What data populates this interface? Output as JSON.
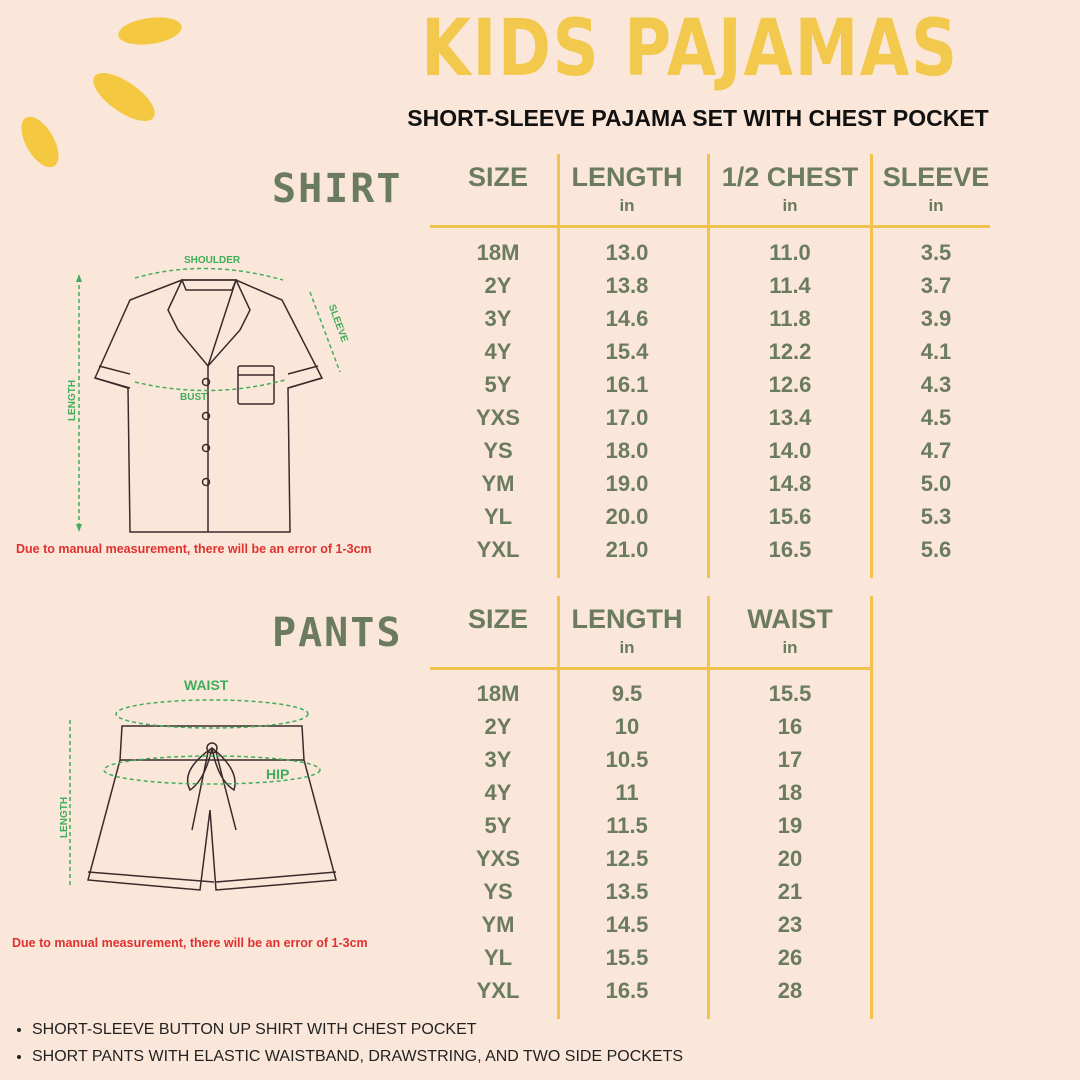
{
  "title": "KIDS PAJAMAS",
  "subtitle": "SHORT-SLEEVE PAJAMA SET WITH CHEST POCKET",
  "colors": {
    "background": "#fbe7da",
    "title": "#f2c94c",
    "text": "#6b7b5f",
    "lines": "#f2c14e",
    "warning": "#e0312f",
    "measure": "#3fae5a"
  },
  "shirt": {
    "label": "SHIRT",
    "diagram_labels": {
      "shoulder": "SHOULDER",
      "sleeve": "SLEEVE",
      "bust": "BUST",
      "length": "LENGTH"
    },
    "note": "Due to manual measurement, there will be an error of 1-3cm",
    "columns": [
      {
        "header": "SIZE",
        "unit": ""
      },
      {
        "header": "LENGTH",
        "unit": "in"
      },
      {
        "header": "1/2 CHEST",
        "unit": "in"
      },
      {
        "header": "SLEEVE",
        "unit": "in"
      }
    ],
    "rows": [
      [
        "18M",
        "13.0",
        "11.0",
        "3.5"
      ],
      [
        "2Y",
        "13.8",
        "11.4",
        "3.7"
      ],
      [
        "3Y",
        "14.6",
        "11.8",
        "3.9"
      ],
      [
        "4Y",
        "15.4",
        "12.2",
        "4.1"
      ],
      [
        "5Y",
        "16.1",
        "12.6",
        "4.3"
      ],
      [
        "YXS",
        "17.0",
        "13.4",
        "4.5"
      ],
      [
        "YS",
        "18.0",
        "14.0",
        "4.7"
      ],
      [
        "YM",
        "19.0",
        "14.8",
        "5.0"
      ],
      [
        "YL",
        "20.0",
        "15.6",
        "5.3"
      ],
      [
        "YXL",
        "21.0",
        "16.5",
        "5.6"
      ]
    ]
  },
  "pants": {
    "label": "PANTS",
    "diagram_labels": {
      "waist": "WAIST",
      "hip": "HIP",
      "length": "LENGTH"
    },
    "note": "Due to manual measurement, there will be an error of 1-3cm",
    "columns": [
      {
        "header": "SIZE",
        "unit": ""
      },
      {
        "header": "LENGTH",
        "unit": "in"
      },
      {
        "header": "WAIST",
        "unit": "in"
      }
    ],
    "rows": [
      [
        "18M",
        "9.5",
        "15.5"
      ],
      [
        "2Y",
        "10",
        "16"
      ],
      [
        "3Y",
        "10.5",
        "17"
      ],
      [
        "4Y",
        "11",
        "18"
      ],
      [
        "5Y",
        "11.5",
        "19"
      ],
      [
        "YXS",
        "12.5",
        "20"
      ],
      [
        "YS",
        "13.5",
        "21"
      ],
      [
        "YM",
        "14.5",
        "23"
      ],
      [
        "YL",
        "15.5",
        "26"
      ],
      [
        "YXL",
        "16.5",
        "28"
      ]
    ]
  },
  "bullets": [
    "SHORT-SLEEVE BUTTON UP SHIRT WITH CHEST POCKET",
    "SHORT PANTS WITH ELASTIC WAISTBAND, DRAWSTRING, AND TWO SIDE POCKETS"
  ]
}
